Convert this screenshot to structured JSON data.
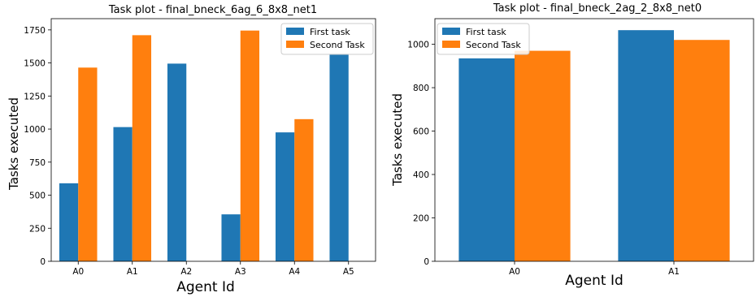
{
  "chart_data": [
    {
      "type": "bar",
      "title": "Task plot - final_bneck_6ag_6_8x8_net1",
      "xlabel": "Agent Id",
      "ylabel": "Tasks executed",
      "categories": [
        "A0",
        "A1",
        "A2",
        "A3",
        "A4",
        "A5"
      ],
      "series": [
        {
          "name": "First task",
          "color": "#1f77b4",
          "values": [
            590,
            1015,
            1495,
            355,
            975,
            1570
          ]
        },
        {
          "name": "Second Task",
          "color": "#ff7f0e",
          "values": [
            1465,
            1710,
            0,
            1745,
            1075,
            0
          ]
        }
      ],
      "ylim": [
        0,
        1835
      ],
      "yticks": [
        0,
        250,
        500,
        750,
        1000,
        1250,
        1500,
        1750
      ],
      "grid": false,
      "legend_position": "top-right"
    },
    {
      "type": "bar",
      "title": "Task plot - final_bneck_2ag_2_8x8_net0",
      "xlabel": "Agent Id",
      "ylabel": "Tasks executed",
      "categories": [
        "A0",
        "A1"
      ],
      "series": [
        {
          "name": "First task",
          "color": "#1f77b4",
          "values": [
            935,
            1065
          ]
        },
        {
          "name": "Second Task",
          "color": "#ff7f0e",
          "values": [
            970,
            1020
          ]
        }
      ],
      "ylim": [
        0,
        1118
      ],
      "yticks": [
        0,
        200,
        400,
        600,
        800,
        1000
      ],
      "grid": false,
      "legend_position": "top-left"
    }
  ]
}
